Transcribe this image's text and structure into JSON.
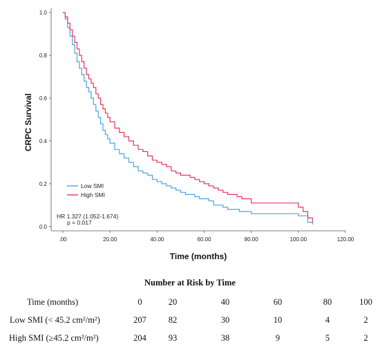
{
  "chart_data": {
    "type": "line",
    "title": "",
    "xlabel": "Time (months)",
    "ylabel": "CRPC Survival",
    "xlim": [
      -5,
      120
    ],
    "ylim": [
      -0.02,
      1.02
    ],
    "xticks": [
      0,
      20,
      40,
      60,
      80,
      100,
      120
    ],
    "xtick_labels": [
      ".00",
      "20.00",
      "40.00",
      "60.00",
      "80.00",
      "100.00",
      "120.00"
    ],
    "yticks": [
      0,
      0.2,
      0.4,
      0.6,
      0.8,
      1.0
    ],
    "ytick_labels": [
      "0.0",
      "0.2",
      "0.4",
      "0.6",
      "0.8",
      "1.0"
    ],
    "legend_position": "bottom-left",
    "colors": {
      "low_smi": "#4aa3df",
      "high_smi": "#e8335c"
    },
    "series": [
      {
        "name": "Low SMI",
        "step": true,
        "x": [
          0,
          1,
          2,
          3,
          4,
          5,
          6,
          7,
          8,
          9,
          10,
          11,
          12,
          13,
          14,
          15,
          16,
          17,
          18,
          19,
          20,
          22,
          24,
          26,
          28,
          30,
          32,
          34,
          36,
          38,
          40,
          42,
          44,
          46,
          48,
          50,
          52,
          54,
          56,
          58,
          60,
          62,
          64,
          66,
          68,
          70,
          75,
          80,
          85,
          90,
          95,
          100,
          104,
          106
        ],
        "y": [
          1.0,
          0.97,
          0.93,
          0.89,
          0.85,
          0.81,
          0.77,
          0.74,
          0.71,
          0.68,
          0.65,
          0.63,
          0.6,
          0.57,
          0.54,
          0.51,
          0.48,
          0.45,
          0.43,
          0.41,
          0.39,
          0.36,
          0.34,
          0.32,
          0.3,
          0.28,
          0.26,
          0.25,
          0.24,
          0.22,
          0.21,
          0.2,
          0.19,
          0.18,
          0.17,
          0.16,
          0.15,
          0.15,
          0.14,
          0.13,
          0.13,
          0.12,
          0.1,
          0.1,
          0.09,
          0.08,
          0.07,
          0.06,
          0.06,
          0.06,
          0.06,
          0.05,
          0.02,
          0.01
        ]
      },
      {
        "name": "High SMI",
        "step": true,
        "x": [
          0,
          1,
          2,
          3,
          4,
          5,
          6,
          7,
          8,
          9,
          10,
          11,
          12,
          13,
          14,
          15,
          16,
          17,
          18,
          19,
          20,
          22,
          24,
          26,
          28,
          30,
          32,
          34,
          36,
          38,
          40,
          42,
          44,
          46,
          48,
          50,
          52,
          54,
          56,
          58,
          60,
          62,
          64,
          66,
          68,
          70,
          72,
          74,
          76,
          80,
          90,
          100,
          102,
          104,
          106
        ],
        "y": [
          1.0,
          0.98,
          0.95,
          0.92,
          0.89,
          0.86,
          0.83,
          0.8,
          0.77,
          0.74,
          0.71,
          0.69,
          0.67,
          0.65,
          0.62,
          0.6,
          0.57,
          0.55,
          0.53,
          0.51,
          0.49,
          0.46,
          0.44,
          0.42,
          0.4,
          0.38,
          0.36,
          0.35,
          0.33,
          0.31,
          0.3,
          0.29,
          0.28,
          0.26,
          0.25,
          0.24,
          0.24,
          0.23,
          0.22,
          0.21,
          0.2,
          0.19,
          0.18,
          0.17,
          0.16,
          0.15,
          0.15,
          0.14,
          0.13,
          0.11,
          0.11,
          0.09,
          0.07,
          0.04,
          0.02
        ]
      }
    ],
    "annotation_hr": "HR 1.327 (1.052-1.674)",
    "annotation_p": "p = 0.017"
  },
  "risk_table": {
    "title": "Number at Risk by Time",
    "header": {
      "label": "Time (months)",
      "values": [
        "0",
        "20",
        "40",
        "60",
        "80",
        "100"
      ]
    },
    "rows": [
      {
        "label": "Low SMI (< 45.2 cm²/m²)",
        "values": [
          "207",
          "82",
          "30",
          "10",
          "4",
          "2"
        ]
      },
      {
        "label": "High SMI (≥45.2 cm²/m²)",
        "values": [
          "204",
          "93",
          "38",
          "9",
          "5",
          "2"
        ]
      }
    ]
  }
}
